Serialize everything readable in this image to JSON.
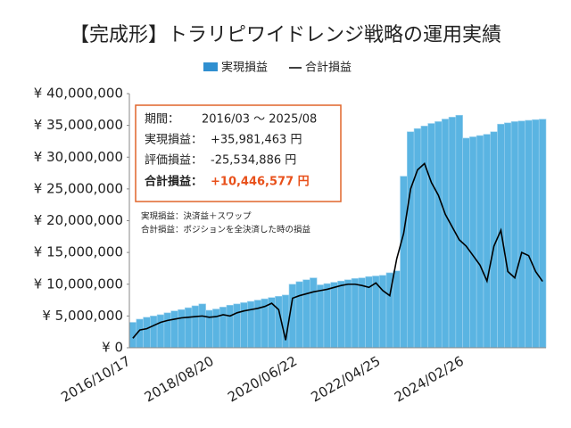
{
  "chart_data": {
    "type": "bar",
    "title": "【完成形】トラリピワイドレンジ戦略の運用実績",
    "categories": [
      "2016/10/17",
      null,
      null,
      null,
      null,
      null,
      null,
      null,
      null,
      null,
      null,
      null,
      "2018/08/20",
      null,
      null,
      null,
      null,
      null,
      null,
      null,
      null,
      null,
      null,
      null,
      "2020/06/22",
      null,
      null,
      null,
      null,
      null,
      null,
      null,
      null,
      null,
      null,
      null,
      "2022/04/25",
      null,
      null,
      null,
      null,
      null,
      null,
      null,
      null,
      null,
      null,
      null,
      "2024/02/26",
      null,
      null,
      null,
      null,
      null,
      null,
      null,
      null,
      null,
      null,
      null
    ],
    "series": [
      {
        "name": "実現損益",
        "type": "bar",
        "color": "#5ab4e2",
        "values": [
          4000000,
          4500000,
          4800000,
          5000000,
          5200000,
          5500000,
          5800000,
          6000000,
          6300000,
          6600000,
          6900000,
          5900000,
          6100000,
          6400000,
          6700000,
          6900000,
          7100000,
          7300000,
          7500000,
          7700000,
          7900000,
          8100000,
          8300000,
          10000000,
          10400000,
          10700000,
          11000000,
          9900000,
          10100000,
          10300000,
          10500000,
          10700000,
          10900000,
          11000000,
          11200000,
          11300000,
          11400000,
          11800000,
          12100000,
          27000000,
          34000000,
          34500000,
          34900000,
          35300000,
          35600000,
          36000000,
          36300000,
          36600000,
          33000000,
          33200000,
          33400000,
          33600000,
          34000000,
          35200000,
          35400000,
          35600000,
          35700000,
          35800000,
          35900000,
          35981463
        ]
      },
      {
        "name": "合計損益",
        "type": "line",
        "color": "#000000",
        "values": [
          1500000,
          2800000,
          3000000,
          3500000,
          4000000,
          4300000,
          4500000,
          4700000,
          4800000,
          4900000,
          5000000,
          4800000,
          4900000,
          5200000,
          5000000,
          5500000,
          5800000,
          6000000,
          6200000,
          6500000,
          7000000,
          6000000,
          1200000,
          7800000,
          8200000,
          8500000,
          8800000,
          9000000,
          9200000,
          9500000,
          9800000,
          10000000,
          10000000,
          9800000,
          9500000,
          10200000,
          9000000,
          8200000,
          14000000,
          18000000,
          25000000,
          28000000,
          29000000,
          26000000,
          24000000,
          21000000,
          19000000,
          17000000,
          16000000,
          14500000,
          13000000,
          10500000,
          16000000,
          18500000,
          12000000,
          11000000,
          15000000,
          14500000,
          12000000,
          10446577
        ]
      }
    ],
    "ylim": [
      0,
      40000000
    ],
    "yticks": [
      {
        "value": 0,
        "label": "¥ 0"
      },
      {
        "value": 5000000,
        "label": "¥ 5,000,000"
      },
      {
        "value": 10000000,
        "label": "¥ 10,000,000"
      },
      {
        "value": 15000000,
        "label": "¥ 15,000,000"
      },
      {
        "value": 20000000,
        "label": "¥ 20,000,000"
      },
      {
        "value": 25000000,
        "label": "¥ 25,000,000"
      },
      {
        "value": 30000000,
        "label": "¥ 30,000,000"
      },
      {
        "value": 35000000,
        "label": "¥ 35,000,000"
      },
      {
        "value": 40000000,
        "label": "¥ 40,000,000"
      }
    ],
    "info_box": [
      {
        "label": "期間：",
        "value": "2016/03 ～ 2025/08"
      },
      {
        "label": "実現損益：",
        "value": "+35,981,463 円"
      },
      {
        "label": "評価損益：",
        "value": "-25,534,886 円"
      },
      {
        "label": "合計損益：",
        "value": "+10,446,577 円"
      }
    ],
    "notes": [
      "実現損益：決済益＋スワップ",
      "合計損益：ポジションを全決済した時の損益"
    ]
  }
}
